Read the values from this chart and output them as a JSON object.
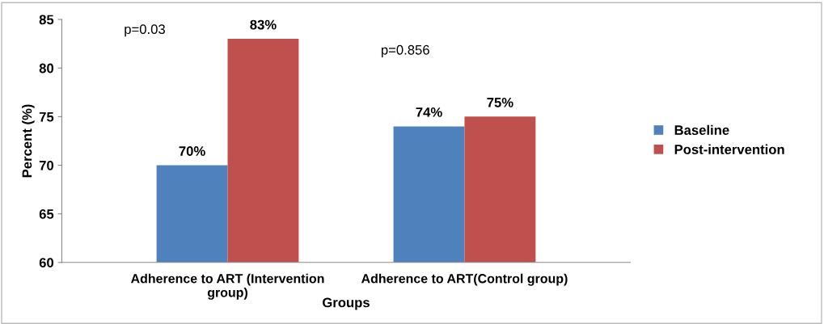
{
  "chart_data": {
    "type": "bar",
    "xlabel": "Groups",
    "ylabel": "Percent (%)",
    "categories": [
      "Adherence to ART (Intervention\ngroup)",
      "Adherence to ART(Control group)"
    ],
    "series": [
      {
        "name": "Baseline",
        "color": "#4f81bd",
        "values": [
          70,
          74
        ],
        "value_labels": [
          "70%",
          "74%"
        ]
      },
      {
        "name": "Post-intervention",
        "color": "#c0504d",
        "values": [
          83,
          75
        ],
        "value_labels": [
          "83%",
          "75%"
        ]
      }
    ],
    "ylim": [
      60,
      85
    ],
    "yticks": [
      60,
      65,
      70,
      75,
      80,
      85
    ],
    "grid": false,
    "legend": "right",
    "annotations": [
      "p=0.03",
      "p=0.856"
    ]
  }
}
